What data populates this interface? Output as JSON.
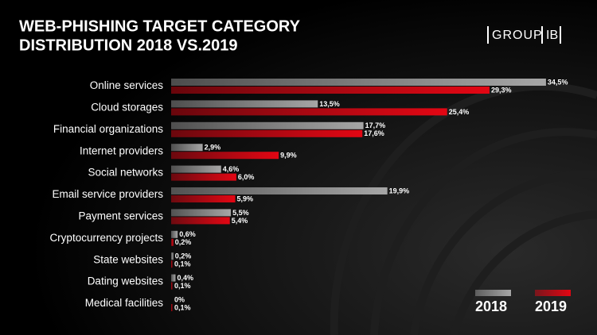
{
  "chart_data": {
    "type": "bar",
    "orientation": "horizontal",
    "title": [
      "WEB-PHISHING TARGET CATEGORY",
      "DISTRIBUTION 2018 VS.2019"
    ],
    "logo": [
      "GROUP",
      "IB"
    ],
    "categories": [
      "Online services",
      "Cloud storages",
      "Financial organizations",
      "Internet providers",
      "Social networks",
      "Email service providers",
      "Payment services",
      "Cryptocurrency projects",
      "State websites",
      "Dating websites",
      "Medical facilities"
    ],
    "series": [
      {
        "name": "2018",
        "color": "#a6a6a6",
        "values": [
          34.5,
          13.5,
          17.7,
          2.9,
          4.6,
          19.9,
          5.5,
          0.6,
          0.2,
          0.4,
          0
        ],
        "value_labels": [
          "34,5%",
          "13,5%",
          "17,7%",
          "2,9%",
          "4,6%",
          "19,9%",
          "5,5%",
          "0,6%",
          "0,2%",
          "0,4%",
          "0%"
        ]
      },
      {
        "name": "2019",
        "color": "#e30613",
        "values": [
          29.3,
          25.4,
          17.6,
          9.9,
          6.0,
          5.9,
          5.4,
          0.2,
          0.1,
          0.1,
          0.1
        ],
        "value_labels": [
          "29,3%",
          "25,4%",
          "17,6%",
          "9,9%",
          "6,0%",
          "5,9%",
          "5,4%",
          "0,2%",
          "0,1%",
          "0,1%",
          "0,1%"
        ]
      }
    ]
  }
}
